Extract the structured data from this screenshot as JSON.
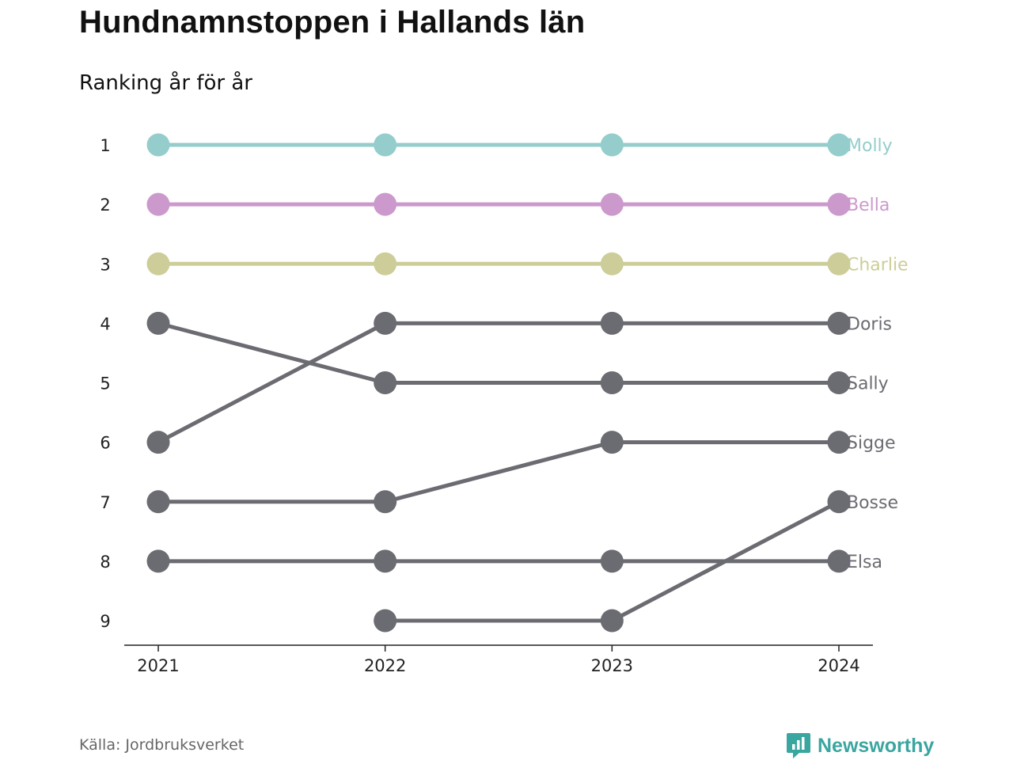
{
  "title": "Hundnamnstoppen i Hallands län",
  "subtitle": "Ranking år för år",
  "source": "Källa: Jordbruksverket",
  "brand": {
    "name": "Newsworthy",
    "icon": "newsworthy-logo-icon",
    "color": "#3aa6a0"
  },
  "chart_data": {
    "type": "line",
    "subtype": "bump",
    "x": [
      "2021",
      "2022",
      "2023",
      "2024"
    ],
    "y_ticks": [
      1,
      2,
      3,
      4,
      5,
      6,
      7,
      8,
      9
    ],
    "ylim": [
      1,
      9
    ],
    "y_reversed": true,
    "grid": false,
    "legend": "direct labels at line ends (right)",
    "series": [
      {
        "name": "Molly",
        "values": [
          1,
          1,
          1,
          1
        ],
        "color": "#94cdcb"
      },
      {
        "name": "Bella",
        "values": [
          2,
          2,
          2,
          2
        ],
        "color": "#cc99cc"
      },
      {
        "name": "Charlie",
        "values": [
          3,
          3,
          3,
          3
        ],
        "color": "#cdcd99"
      },
      {
        "name": "Doris",
        "values": [
          6,
          4,
          4,
          4
        ],
        "color": "#6b6b72"
      },
      {
        "name": "Sally",
        "values": [
          4,
          5,
          5,
          5
        ],
        "color": "#6b6b72"
      },
      {
        "name": "Sigge",
        "values": [
          7,
          7,
          6,
          6
        ],
        "color": "#6b6b72"
      },
      {
        "name": "Bosse",
        "values": [
          null,
          9,
          9,
          7
        ],
        "color": "#6b6b72"
      },
      {
        "name": "Elsa",
        "values": [
          8,
          8,
          8,
          8
        ],
        "color": "#6b6b72"
      }
    ]
  }
}
